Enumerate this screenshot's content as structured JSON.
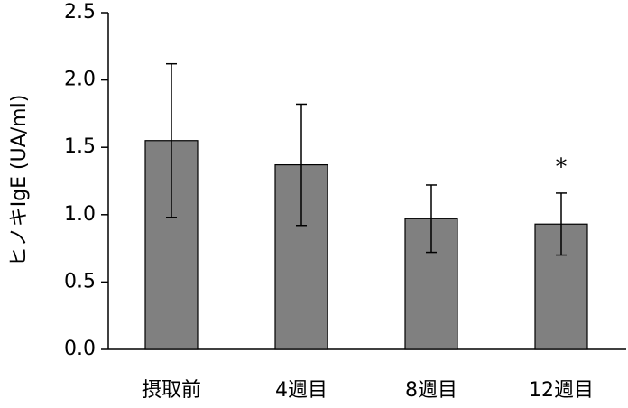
{
  "chart_data": {
    "type": "bar",
    "y_label": "ヒノキIgE (UA/ml)",
    "categories": [
      "摂取前",
      "4週目",
      "8週目",
      "12週目"
    ],
    "values": [
      1.55,
      1.37,
      0.97,
      0.93
    ],
    "errors": [
      0.57,
      0.45,
      0.25,
      0.23
    ],
    "color": "#808080",
    "annotation": "*",
    "ylim": [
      0,
      2.5
    ],
    "yticks": [
      {
        "value": 0,
        "label": "0.0"
      },
      0.5,
      {
        "value": 1,
        "label": "1.0"
      },
      1.5,
      {
        "value": 2,
        "label": "2.0"
      },
      2.5
    ]
  }
}
